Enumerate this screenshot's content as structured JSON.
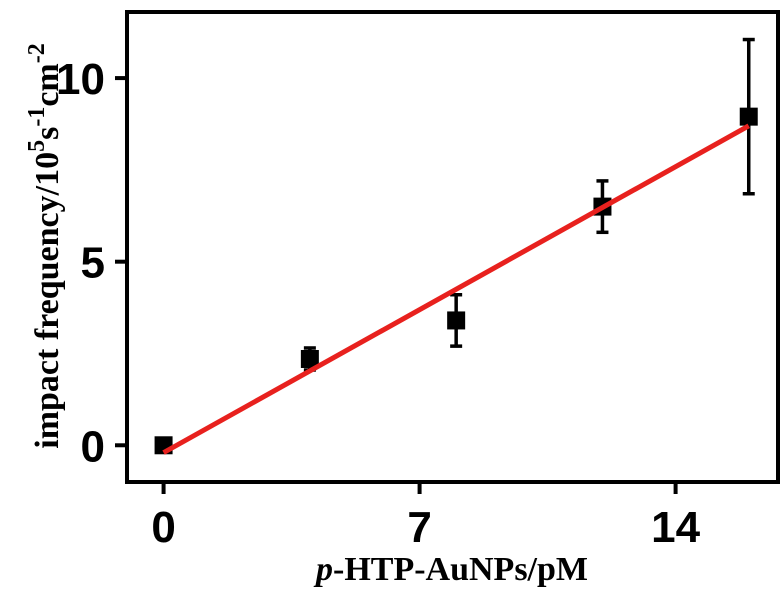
{
  "chart_data": {
    "type": "scatter",
    "title": "",
    "xlabel_prefix": "p",
    "xlabel_rest": "-HTP-AuNPs/pM",
    "ylabel_main": "impact frequency/10",
    "ylabel_sup1": "5",
    "ylabel_mid": "s",
    "ylabel_sup2": "-1",
    "ylabel_mid2": "cm",
    "ylabel_sup3": "-2",
    "xlim": [
      -1.0,
      16.8
    ],
    "ylim": [
      -1.0,
      11.8
    ],
    "xticks": [
      0,
      7,
      14
    ],
    "xtick_labels": [
      "0",
      "7",
      "14"
    ],
    "yticks": [
      0,
      5,
      10
    ],
    "ytick_labels": [
      "0",
      "5",
      "10"
    ],
    "grid": false,
    "series": [
      {
        "marker": "square",
        "color": "#000000",
        "points": [
          {
            "x": 0,
            "y": 0.0,
            "err": 0.1
          },
          {
            "x": 4,
            "y": 2.35,
            "err": 0.3
          },
          {
            "x": 8,
            "y": 3.4,
            "err": 0.7
          },
          {
            "x": 12,
            "y": 6.5,
            "err": 0.7
          },
          {
            "x": 16,
            "y": 8.95,
            "err": 2.1
          }
        ]
      }
    ],
    "fit_line": {
      "color": "#e8211e",
      "x": [
        0,
        16
      ],
      "y": [
        -0.2,
        8.7
      ]
    }
  }
}
